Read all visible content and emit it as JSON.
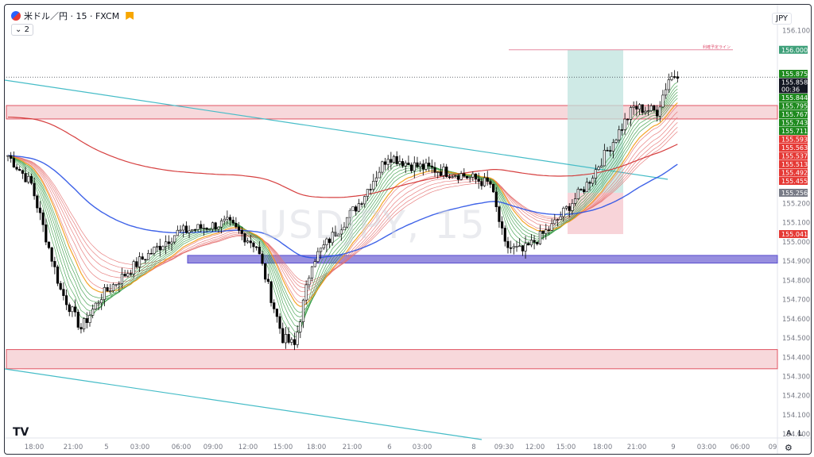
{
  "legend": {
    "symbol": "米ドル／円 · 15 · FXCM",
    "indicator_count": "2"
  },
  "currency": "JPY",
  "watermark": "USDJPY, 15",
  "axis_ctrl": {
    "auto": "A",
    "log": "L"
  },
  "colors": {
    "up": "#ffffff",
    "down": "#000000",
    "zone": "#f4c7cc",
    "zone_border": "#e05563",
    "support_band": "#8c82dc",
    "sma_blue": "#2a52e6",
    "sma_red": "#d12b2b",
    "trend_cyan": "#45bcc7"
  },
  "chart_data": {
    "type": "candlestick",
    "symbol": "USDJPY",
    "timeframe": "15",
    "source": "FXCM",
    "y_ticks": [
      "156.100",
      "155.200",
      "155.100",
      "155.000",
      "154.900",
      "154.800",
      "154.700",
      "154.600",
      "154.500",
      "154.400",
      "154.300",
      "154.200",
      "154.100",
      "154.000"
    ],
    "y_range": [
      153.98,
      156.16
    ],
    "x_ticks": [
      "18:00",
      "21:00",
      "5",
      "03:00",
      "06:00",
      "09:00",
      "12:00",
      "15:00",
      "18:00",
      "21:00",
      "6",
      "03:00",
      "8",
      "09:30",
      "12:00",
      "15:00",
      "18:00",
      "21:00",
      "9",
      "03:00",
      "06:00",
      "09"
    ],
    "price_labels": [
      {
        "value": "156.000",
        "color": "#3fa07a"
      },
      {
        "value": "155.875",
        "color": "#1e8a1e"
      },
      {
        "value": "155.858",
        "color": "#131722",
        "sub": "00:36"
      },
      {
        "value": "155.844",
        "color": "#1e8a1e"
      },
      {
        "value": "155.795",
        "color": "#1e8a1e"
      },
      {
        "value": "155.767",
        "color": "#1e8a1e"
      },
      {
        "value": "155.743",
        "color": "#1e8a1e"
      },
      {
        "value": "155.711",
        "color": "#1e8a1e"
      },
      {
        "value": "155.593",
        "color": "#e53935"
      },
      {
        "value": "155.563",
        "color": "#e53935"
      },
      {
        "value": "155.537",
        "color": "#e53935"
      },
      {
        "value": "155.513",
        "color": "#e53935"
      },
      {
        "value": "155.492",
        "color": "#e53935"
      },
      {
        "value": "155.455",
        "color": "#e53935"
      },
      {
        "value": "155.256",
        "color": "#787b86"
      },
      {
        "value": "155.041",
        "color": "#e53935"
      }
    ],
    "target_label": "利確予定ライン",
    "zones": [
      {
        "name": "resistance",
        "low": 155.64,
        "high": 155.71
      },
      {
        "name": "support",
        "low": 154.89,
        "high": 154.93
      },
      {
        "name": "demand",
        "low": 154.34,
        "high": 154.44
      }
    ],
    "position": {
      "entry": 155.256,
      "target": 156.0,
      "stop": 155.041
    }
  }
}
